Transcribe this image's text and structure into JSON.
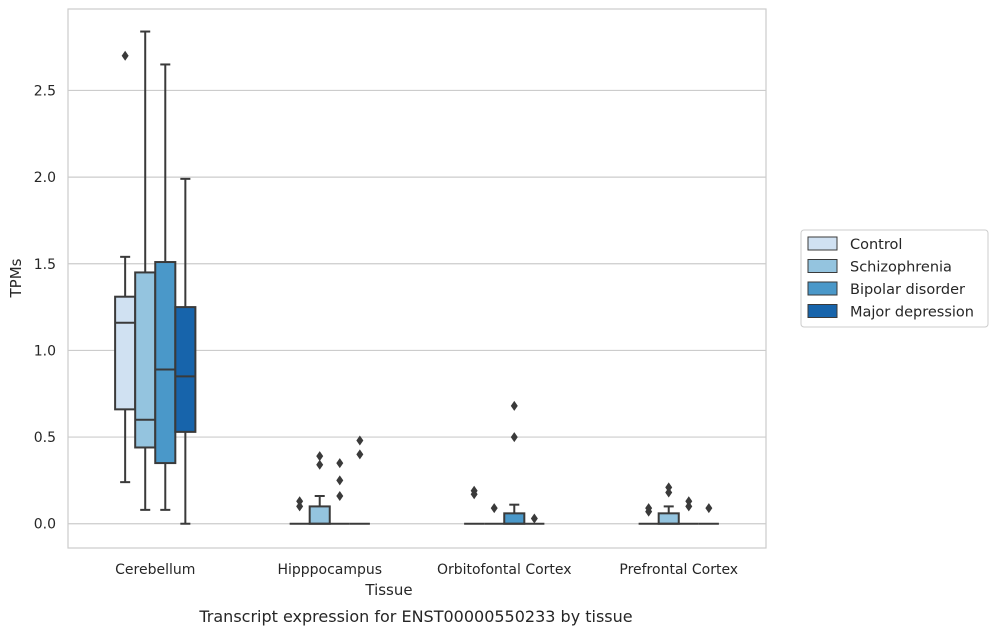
{
  "caption": "Transcript expression for ENST00000550233 by tissue",
  "chart_data": {
    "type": "box",
    "title": "",
    "xlabel": "Tissue",
    "ylabel": "TPMs",
    "ylim": [
      -0.14,
      2.97
    ],
    "yticks": [
      0.0,
      0.5,
      1.0,
      1.5,
      2.0,
      2.5
    ],
    "ytick_labels": [
      "0.0",
      "0.5",
      "1.0",
      "1.5",
      "2.0",
      "2.5"
    ],
    "grid": "horizontal",
    "legend_position": "right",
    "categories": [
      "Cerebellum",
      "Hipppocampus",
      "Orbitofontal Cortex",
      "Prefrontal Cortex"
    ],
    "series": [
      {
        "name": "Control",
        "color": "#d0e1f2",
        "boxes": [
          {
            "q1": 0.66,
            "median": 1.16,
            "q3": 1.31,
            "whisker_low": 0.24,
            "whisker_high": 1.54,
            "outliers": [
              2.7
            ]
          },
          {
            "q1": 0.0,
            "median": 0.0,
            "q3": 0.0,
            "whisker_low": 0.0,
            "whisker_high": 0.0,
            "outliers": [
              0.1,
              0.13
            ]
          },
          {
            "q1": 0.0,
            "median": 0.0,
            "q3": 0.0,
            "whisker_low": 0.0,
            "whisker_high": 0.0,
            "outliers": [
              0.17,
              0.19
            ]
          },
          {
            "q1": 0.0,
            "median": 0.0,
            "q3": 0.0,
            "whisker_low": 0.0,
            "whisker_high": 0.0,
            "outliers": [
              0.07,
              0.09
            ]
          }
        ]
      },
      {
        "name": "Schizophrenia",
        "color": "#94c4df",
        "boxes": [
          {
            "q1": 0.44,
            "median": 0.6,
            "q3": 1.45,
            "whisker_low": 0.08,
            "whisker_high": 2.84,
            "outliers": []
          },
          {
            "q1": 0.0,
            "median": 0.0,
            "q3": 0.1,
            "whisker_low": 0.0,
            "whisker_high": 0.16,
            "outliers": [
              0.34,
              0.39
            ]
          },
          {
            "q1": 0.0,
            "median": 0.0,
            "q3": 0.0,
            "whisker_low": 0.0,
            "whisker_high": 0.0,
            "outliers": [
              0.09
            ]
          },
          {
            "q1": 0.0,
            "median": 0.0,
            "q3": 0.06,
            "whisker_low": 0.0,
            "whisker_high": 0.1,
            "outliers": [
              0.18,
              0.21
            ]
          }
        ]
      },
      {
        "name": "Bipolar disorder",
        "color": "#4a98c9",
        "boxes": [
          {
            "q1": 0.35,
            "median": 0.89,
            "q3": 1.51,
            "whisker_low": 0.08,
            "whisker_high": 2.65,
            "outliers": []
          },
          {
            "q1": 0.0,
            "median": 0.0,
            "q3": 0.0,
            "whisker_low": 0.0,
            "whisker_high": 0.0,
            "outliers": [
              0.16,
              0.25,
              0.35
            ]
          },
          {
            "q1": 0.0,
            "median": 0.0,
            "q3": 0.06,
            "whisker_low": 0.0,
            "whisker_high": 0.11,
            "outliers": [
              0.5,
              0.68
            ]
          },
          {
            "q1": 0.0,
            "median": 0.0,
            "q3": 0.0,
            "whisker_low": 0.0,
            "whisker_high": 0.0,
            "outliers": [
              0.1,
              0.13
            ]
          }
        ]
      },
      {
        "name": "Major depression",
        "color": "#1764ab",
        "boxes": [
          {
            "q1": 0.53,
            "median": 0.85,
            "q3": 1.25,
            "whisker_low": 0.0,
            "whisker_high": 1.99,
            "outliers": []
          },
          {
            "q1": 0.0,
            "median": 0.0,
            "q3": 0.0,
            "whisker_low": 0.0,
            "whisker_high": 0.0,
            "outliers": [
              0.4,
              0.48
            ]
          },
          {
            "q1": 0.0,
            "median": 0.0,
            "q3": 0.0,
            "whisker_low": 0.0,
            "whisker_high": 0.0,
            "outliers": [
              0.03
            ]
          },
          {
            "q1": 0.0,
            "median": 0.0,
            "q3": 0.0,
            "whisker_low": 0.0,
            "whisker_high": 0.0,
            "outliers": [
              0.09
            ]
          }
        ]
      }
    ]
  }
}
